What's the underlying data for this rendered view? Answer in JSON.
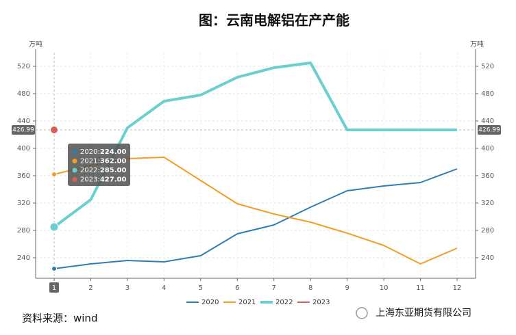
{
  "chart_data": {
    "type": "line",
    "title": "图：云南电解铝在产产能",
    "y_label": "万吨",
    "y2_label": "万吨",
    "categories": [
      "1",
      "2",
      "3",
      "4",
      "5",
      "6",
      "7",
      "8",
      "9",
      "10",
      "11",
      "12"
    ],
    "series": [
      {
        "name": "2020",
        "color": "#2f7db3",
        "width": 2,
        "values": [
          224,
          231,
          236,
          234,
          243,
          275,
          288,
          314,
          338,
          345,
          350,
          370
        ]
      },
      {
        "name": "2021",
        "color": "#f39c26",
        "width": 2,
        "values": [
          362,
          375,
          385,
          387,
          353,
          319,
          304,
          292,
          276,
          258,
          231,
          254
        ]
      },
      {
        "name": "2022",
        "color": "#6ccfcf",
        "width": 4,
        "values": [
          285,
          325,
          430,
          469,
          478,
          504,
          518,
          525,
          427,
          427,
          427,
          427
        ]
      },
      {
        "name": "2023",
        "color": "#d9605a",
        "width": 2,
        "values": [
          427,
          null,
          null,
          null,
          null,
          null,
          null,
          null,
          null,
          null,
          null,
          null
        ]
      }
    ],
    "ylim": [
      210,
      540
    ],
    "yticks": [
      240,
      280,
      320,
      360,
      400,
      440,
      480,
      520
    ],
    "y2lim": [
      210,
      540
    ],
    "y2ticks": [
      240,
      280,
      320,
      360,
      400,
      440,
      480,
      520
    ],
    "grid": true,
    "legend": "bottom",
    "axis_pointer": 426.99,
    "tooltip": [
      {
        "name": "2020:",
        "value": "224.00"
      },
      {
        "name": "2021:",
        "value": "362.00"
      },
      {
        "name": "2022:",
        "value": "285.00"
      },
      {
        "name": "2023:",
        "value": "427.00"
      }
    ],
    "source": "资料来源：wind",
    "watermark": "上海东亚期货有限公司"
  }
}
